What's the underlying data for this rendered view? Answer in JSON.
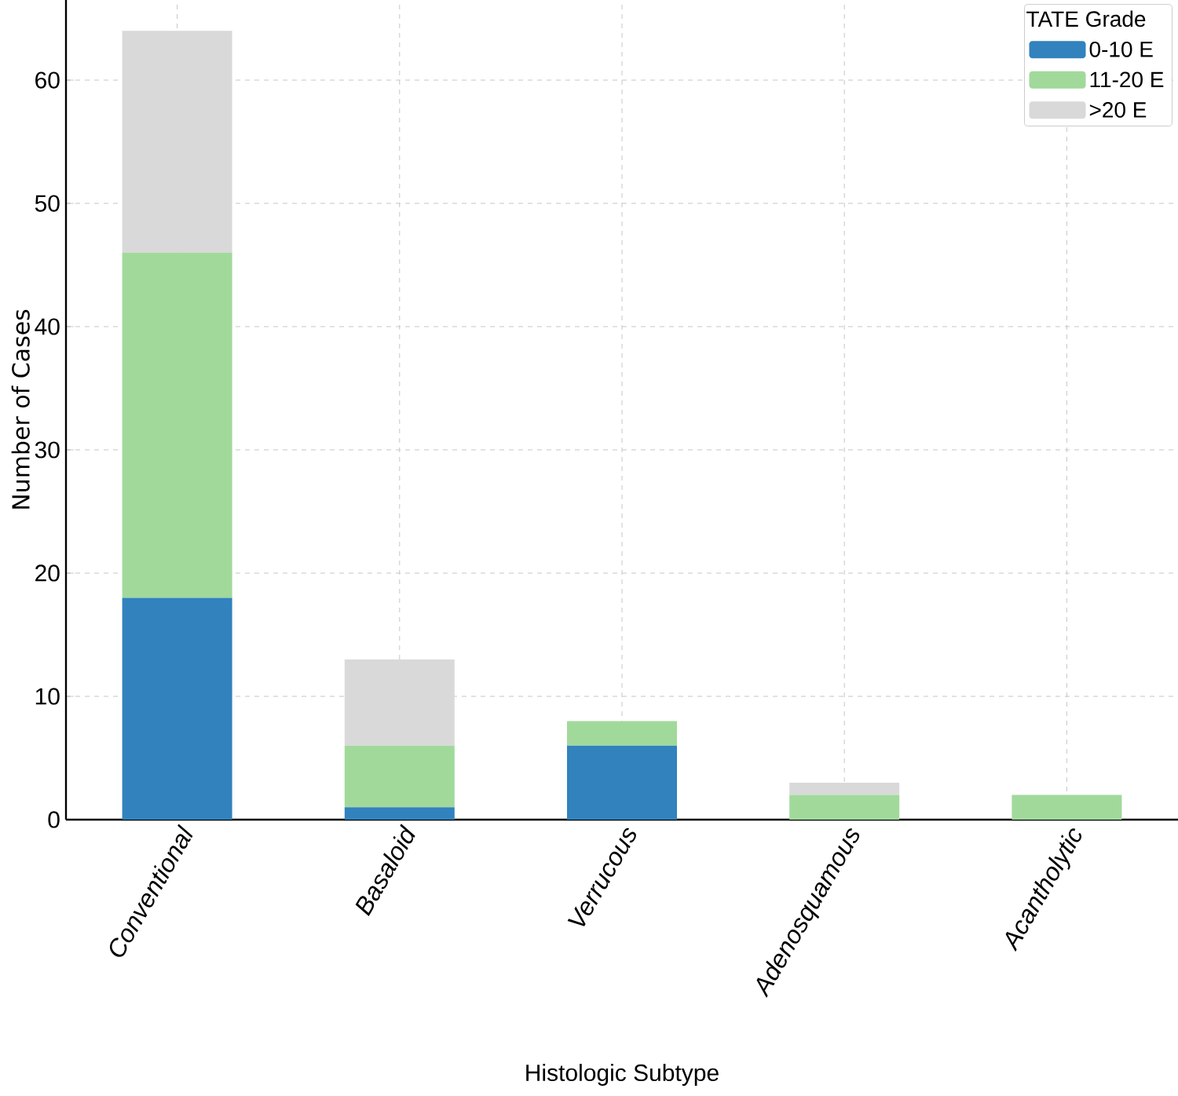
{
  "chart_data": {
    "type": "bar",
    "stacked": true,
    "xlabel": "Histologic Subtype",
    "ylabel": "Number of Cases",
    "legend_title": "TATE Grade",
    "categories": [
      "Conventional",
      "Basaloid",
      "Verrucous",
      "Adenosquamous",
      "Acantholytic"
    ],
    "series": [
      {
        "name": "0-10 E",
        "color": "#3182bd",
        "values": [
          18,
          1,
          6,
          0,
          0
        ]
      },
      {
        "name": "11-20 E",
        "color": "#a1d99b",
        "values": [
          28,
          5,
          2,
          2,
          2
        ]
      },
      {
        "name": ">20 E",
        "color": "#d9d9d9",
        "values": [
          18,
          7,
          0,
          1,
          0
        ]
      }
    ],
    "ylim": [
      0,
      66.5
    ],
    "yticks": [
      0,
      10,
      20,
      30,
      40,
      50,
      60
    ],
    "grid": true,
    "legend": "top right"
  }
}
